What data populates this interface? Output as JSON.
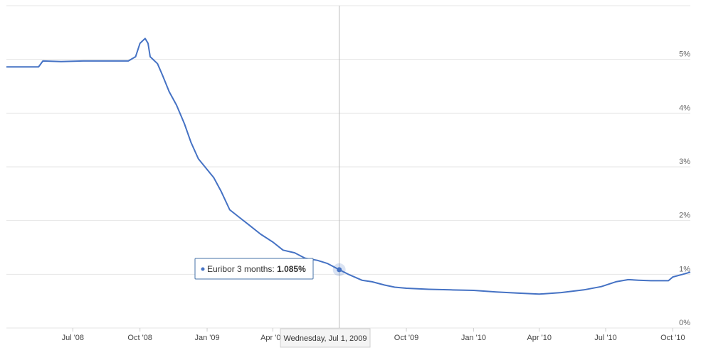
{
  "chart_data": {
    "type": "line",
    "series": [
      {
        "name": "Euribor 3 months",
        "color": "#4572c4",
        "points": [
          [
            "2008-04-01",
            4.86
          ],
          [
            "2008-04-20",
            4.86
          ],
          [
            "2008-05-15",
            4.86
          ],
          [
            "2008-05-21",
            4.97
          ],
          [
            "2008-06-15",
            4.96
          ],
          [
            "2008-07-15",
            4.97
          ],
          [
            "2008-08-15",
            4.97
          ],
          [
            "2008-09-15",
            4.97
          ],
          [
            "2008-09-25",
            5.05
          ],
          [
            "2008-10-01",
            5.3
          ],
          [
            "2008-10-08",
            5.39
          ],
          [
            "2008-10-12",
            5.3
          ],
          [
            "2008-10-15",
            5.05
          ],
          [
            "2008-10-25",
            4.92
          ],
          [
            "2008-11-01",
            4.7
          ],
          [
            "2008-11-10",
            4.4
          ],
          [
            "2008-11-20",
            4.15
          ],
          [
            "2008-12-01",
            3.8
          ],
          [
            "2008-12-10",
            3.45
          ],
          [
            "2008-12-20",
            3.15
          ],
          [
            "2009-01-01",
            2.95
          ],
          [
            "2009-01-10",
            2.8
          ],
          [
            "2009-01-20",
            2.55
          ],
          [
            "2009-02-01",
            2.2
          ],
          [
            "2009-02-15",
            2.05
          ],
          [
            "2009-03-01",
            1.9
          ],
          [
            "2009-03-15",
            1.75
          ],
          [
            "2009-04-01",
            1.6
          ],
          [
            "2009-04-15",
            1.45
          ],
          [
            "2009-05-01",
            1.4
          ],
          [
            "2009-05-15",
            1.3
          ],
          [
            "2009-06-01",
            1.26
          ],
          [
            "2009-06-15",
            1.2
          ],
          [
            "2009-07-01",
            1.085
          ],
          [
            "2009-07-15",
            0.99
          ],
          [
            "2009-08-01",
            0.89
          ],
          [
            "2009-08-15",
            0.86
          ],
          [
            "2009-09-01",
            0.8
          ],
          [
            "2009-09-15",
            0.76
          ],
          [
            "2009-10-01",
            0.74
          ],
          [
            "2009-11-01",
            0.72
          ],
          [
            "2009-12-01",
            0.71
          ],
          [
            "2010-01-01",
            0.7
          ],
          [
            "2010-02-01",
            0.67
          ],
          [
            "2010-03-01",
            0.65
          ],
          [
            "2010-04-01",
            0.63
          ],
          [
            "2010-05-01",
            0.66
          ],
          [
            "2010-06-01",
            0.71
          ],
          [
            "2010-06-25",
            0.77
          ],
          [
            "2010-07-15",
            0.86
          ],
          [
            "2010-08-01",
            0.9
          ],
          [
            "2010-08-15",
            0.89
          ],
          [
            "2010-09-01",
            0.88
          ],
          [
            "2010-09-25",
            0.88
          ],
          [
            "2010-10-01",
            0.95
          ],
          [
            "2010-10-15",
            1.0
          ],
          [
            "2010-10-25",
            1.04
          ]
        ]
      }
    ],
    "y_ticks": [
      {
        "value": 0,
        "label": "0%"
      },
      {
        "value": 1,
        "label": "1%"
      },
      {
        "value": 2,
        "label": "2%"
      },
      {
        "value": 3,
        "label": "3%"
      },
      {
        "value": 4,
        "label": "4%"
      },
      {
        "value": 5,
        "label": "5%"
      }
    ],
    "x_ticks": [
      {
        "date": "2008-07-01",
        "label": "Jul '08"
      },
      {
        "date": "2008-10-01",
        "label": "Oct '08"
      },
      {
        "date": "2009-01-01",
        "label": "Jan '09"
      },
      {
        "date": "2009-04-01",
        "label": "Apr '09"
      },
      {
        "date": "2009-10-01",
        "label": "Oct '09"
      },
      {
        "date": "2010-01-01",
        "label": "Jan '10"
      },
      {
        "date": "2010-04-01",
        "label": "Apr '10"
      },
      {
        "date": "2010-07-01",
        "label": "Jul '10"
      },
      {
        "date": "2010-10-01",
        "label": "Oct '10"
      }
    ],
    "x_range": [
      "2008-04-01",
      "2010-10-25"
    ],
    "y_range": [
      0,
      6
    ],
    "grid": true,
    "highlight": {
      "date": "2009-07-01",
      "value": 1.085,
      "series_label": "Euribor 3 months:",
      "value_label": "1.085%",
      "date_label": "Wednesday, Jul 1, 2009"
    }
  }
}
